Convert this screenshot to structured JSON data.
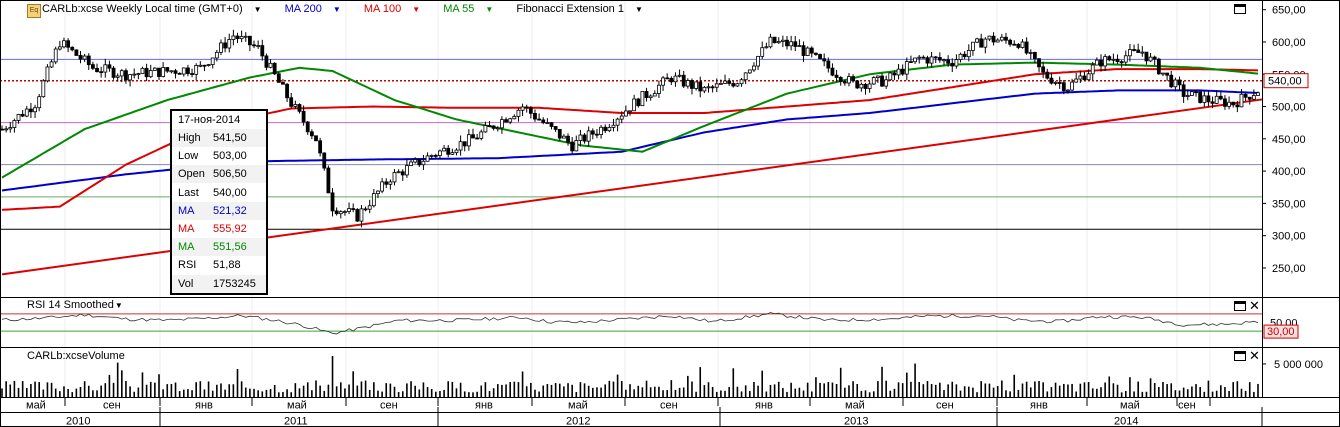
{
  "header": {
    "symbol": "CARLb:xcse Weekly Local time (GMT+0)",
    "indicators": [
      {
        "label": "MA 200",
        "color": "#0000cc"
      },
      {
        "label": "MA 100",
        "color": "#dd0000"
      },
      {
        "label": "MA 55",
        "color": "#008800"
      },
      {
        "label": "Fibonacci Extension 1",
        "color": "#000000"
      }
    ]
  },
  "info_box": {
    "date": "17-ноя-2014",
    "rows": [
      {
        "k": "High",
        "v": "541,50",
        "color": "#000000"
      },
      {
        "k": "Low",
        "v": "503,00",
        "color": "#000000"
      },
      {
        "k": "Open",
        "v": "506,50",
        "color": "#000000"
      },
      {
        "k": "Last",
        "v": "540,00",
        "color": "#000000"
      },
      {
        "k": "MA",
        "v": "521,32",
        "color": "#0000cc"
      },
      {
        "k": "MA",
        "v": "555,92",
        "color": "#dd0000"
      },
      {
        "k": "MA",
        "v": "551,56",
        "color": "#008800"
      },
      {
        "k": "RSI",
        "v": "51,88",
        "color": "#000000"
      },
      {
        "k": "Vol",
        "v": "1753245",
        "color": "#000000"
      }
    ]
  },
  "price_axis": {
    "ticks": [
      "650,00",
      "600,00",
      "550,00",
      "500,00",
      "450,00",
      "400,00",
      "350,00",
      "300,00",
      "250,00"
    ],
    "tick_values": [
      650,
      600,
      550,
      500,
      450,
      400,
      350,
      300,
      250
    ],
    "last_label": "540,00",
    "last_value": 540
  },
  "rsi_pane": {
    "label": "RSI 14 Smoothed",
    "ticks": [
      "50,00"
    ],
    "level_label": "30,00",
    "level_value": 30
  },
  "volume_pane": {
    "label": "CARLb:xcseVolume",
    "ticks": [
      "5 000 000"
    ]
  },
  "time_axis": {
    "months": [
      "май",
      "сен",
      "янв",
      "май",
      "сен",
      "янв",
      "май",
      "сен",
      "янв",
      "май",
      "сен",
      "янв",
      "май",
      "сен"
    ],
    "years": [
      "2010",
      "2011",
      "2012",
      "2013",
      "2014"
    ]
  },
  "chart_data": {
    "type": "candlestick",
    "title": "CARLb:xcse Weekly",
    "ylim": [
      205,
      665
    ],
    "yticks": [
      650,
      600,
      550,
      500,
      450,
      400,
      350,
      300,
      250
    ],
    "horizontal_levels": [
      {
        "value": 573,
        "color": "#6666ff"
      },
      {
        "value": 540,
        "color": "#cc0000",
        "style": "dotted"
      },
      {
        "value": 475,
        "color": "#cc66cc"
      },
      {
        "value": 410,
        "color": "#8888aa"
      },
      {
        "value": 360,
        "color": "#66aa66"
      },
      {
        "value": 310,
        "color": "#000000"
      }
    ],
    "anchors": {
      "price": [
        [
          0,
          465
        ],
        [
          8,
          505
        ],
        [
          14,
          600
        ],
        [
          22,
          560
        ],
        [
          30,
          550
        ],
        [
          40,
          555
        ],
        [
          48,
          560
        ],
        [
          56,
          610
        ],
        [
          62,
          590
        ],
        [
          70,
          505
        ],
        [
          76,
          450
        ],
        [
          80,
          345
        ],
        [
          86,
          330
        ],
        [
          94,
          390
        ],
        [
          104,
          425
        ],
        [
          114,
          450
        ],
        [
          120,
          475
        ],
        [
          126,
          500
        ],
        [
          132,
          470
        ],
        [
          138,
          440
        ],
        [
          146,
          470
        ],
        [
          154,
          510
        ],
        [
          162,
          545
        ],
        [
          170,
          525
        ],
        [
          178,
          540
        ],
        [
          186,
          600
        ],
        [
          192,
          595
        ],
        [
          200,
          560
        ],
        [
          206,
          535
        ],
        [
          214,
          540
        ],
        [
          222,
          575
        ],
        [
          230,
          570
        ],
        [
          238,
          605
        ],
        [
          246,
          600
        ],
        [
          252,
          550
        ],
        [
          258,
          530
        ],
        [
          266,
          570
        ],
        [
          276,
          585
        ],
        [
          282,
          545
        ],
        [
          286,
          520
        ],
        [
          292,
          510
        ],
        [
          298,
          505
        ],
        [
          304,
          525
        ]
      ],
      "ma55": [
        [
          0,
          390
        ],
        [
          20,
          465
        ],
        [
          40,
          510
        ],
        [
          60,
          545
        ],
        [
          72,
          560
        ],
        [
          80,
          555
        ],
        [
          95,
          510
        ],
        [
          110,
          480
        ],
        [
          125,
          460
        ],
        [
          140,
          440
        ],
        [
          155,
          430
        ],
        [
          170,
          470
        ],
        [
          190,
          520
        ],
        [
          210,
          550
        ],
        [
          230,
          565
        ],
        [
          250,
          568
        ],
        [
          270,
          565
        ],
        [
          290,
          560
        ],
        [
          304,
          551
        ]
      ],
      "ma100": [
        [
          0,
          340
        ],
        [
          14,
          345
        ],
        [
          30,
          410
        ],
        [
          50,
          470
        ],
        [
          70,
          497
        ],
        [
          90,
          500
        ],
        [
          110,
          498
        ],
        [
          130,
          498
        ],
        [
          150,
          490
        ],
        [
          170,
          490
        ],
        [
          190,
          500
        ],
        [
          210,
          510
        ],
        [
          230,
          530
        ],
        [
          250,
          550
        ],
        [
          270,
          558
        ],
        [
          290,
          558
        ],
        [
          304,
          556
        ]
      ],
      "ma200": [
        [
          0,
          370
        ],
        [
          30,
          395
        ],
        [
          60,
          415
        ],
        [
          90,
          418
        ],
        [
          120,
          420
        ],
        [
          150,
          430
        ],
        [
          170,
          460
        ],
        [
          190,
          480
        ],
        [
          210,
          490
        ],
        [
          230,
          505
        ],
        [
          250,
          520
        ],
        [
          270,
          525
        ],
        [
          290,
          525
        ],
        [
          304,
          521
        ]
      ],
      "trendline": [
        [
          0,
          240
        ],
        [
          304,
          511
        ]
      ],
      "rsi": [
        [
          0,
          56
        ],
        [
          10,
          60
        ],
        [
          20,
          68
        ],
        [
          30,
          58
        ],
        [
          40,
          55
        ],
        [
          50,
          60
        ],
        [
          58,
          66
        ],
        [
          66,
          55
        ],
        [
          72,
          45
        ],
        [
          80,
          25
        ],
        [
          86,
          35
        ],
        [
          96,
          55
        ],
        [
          110,
          55
        ],
        [
          126,
          62
        ],
        [
          132,
          52
        ],
        [
          140,
          50
        ],
        [
          154,
          60
        ],
        [
          162,
          66
        ],
        [
          172,
          52
        ],
        [
          186,
          70
        ],
        [
          200,
          55
        ],
        [
          214,
          58
        ],
        [
          224,
          65
        ],
        [
          238,
          66
        ],
        [
          246,
          55
        ],
        [
          256,
          52
        ],
        [
          266,
          64
        ],
        [
          276,
          62
        ],
        [
          286,
          45
        ],
        [
          296,
          46
        ],
        [
          304,
          52
        ]
      ]
    },
    "weeks": 305,
    "volume_max": 6500000
  }
}
